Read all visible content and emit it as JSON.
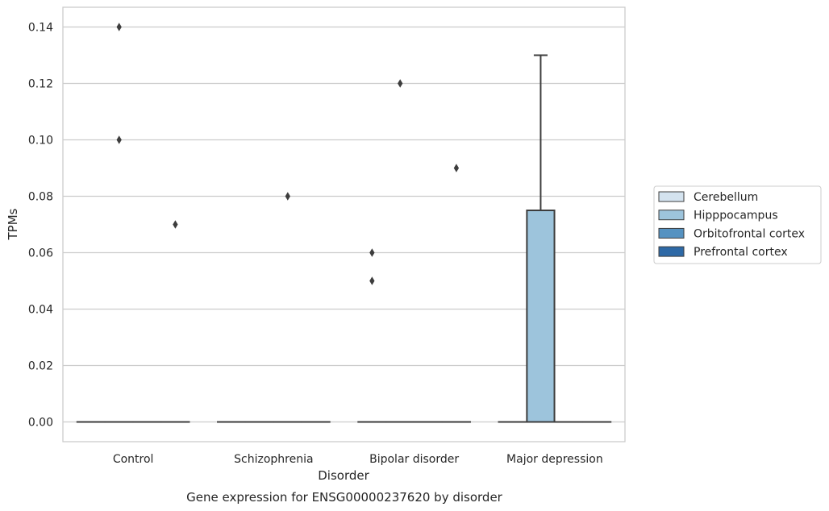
{
  "chart_data": {
    "type": "box",
    "xlabel": "Disorder",
    "ylabel": "TPMs",
    "caption": "Gene expression for ENSG00000237620 by disorder",
    "categories": [
      "Control",
      "Schizophrenia",
      "Bipolar disorder",
      "Major depression"
    ],
    "ylim": [
      -0.007,
      0.147
    ],
    "yticks": [
      "0.00",
      "0.02",
      "0.04",
      "0.06",
      "0.08",
      "0.10",
      "0.12",
      "0.14"
    ],
    "ytick_values": [
      0,
      0.02,
      0.04,
      0.06,
      0.08,
      0.1,
      0.12,
      0.14
    ],
    "grid": "horizontal",
    "legend_position": "outside-right",
    "series": [
      {
        "name": "Cerebellum",
        "color": "#d4e3ef"
      },
      {
        "name": "Hipppocampus",
        "color": "#9dc4dc"
      },
      {
        "name": "Orbitofrontal cortex",
        "color": "#5592c1"
      },
      {
        "name": "Prefrontal cortex",
        "color": "#2e69a6"
      }
    ],
    "boxes": [
      {
        "category": "Control",
        "series": "Cerebellum",
        "q1": 0,
        "median": 0,
        "q3": 0,
        "whisker_low": 0,
        "whisker_high": 0,
        "outliers": []
      },
      {
        "category": "Control",
        "series": "Hipppocampus",
        "q1": 0,
        "median": 0,
        "q3": 0,
        "whisker_low": 0,
        "whisker_high": 0,
        "outliers": [
          0.14,
          0.1
        ]
      },
      {
        "category": "Control",
        "series": "Orbitofrontal cortex",
        "q1": 0,
        "median": 0,
        "q3": 0,
        "whisker_low": 0,
        "whisker_high": 0,
        "outliers": []
      },
      {
        "category": "Control",
        "series": "Prefrontal cortex",
        "q1": 0,
        "median": 0,
        "q3": 0,
        "whisker_low": 0,
        "whisker_high": 0,
        "outliers": [
          0.07
        ]
      },
      {
        "category": "Schizophrenia",
        "series": "Cerebellum",
        "q1": 0,
        "median": 0,
        "q3": 0,
        "whisker_low": 0,
        "whisker_high": 0,
        "outliers": []
      },
      {
        "category": "Schizophrenia",
        "series": "Hipppocampus",
        "q1": 0,
        "median": 0,
        "q3": 0,
        "whisker_low": 0,
        "whisker_high": 0,
        "outliers": []
      },
      {
        "category": "Schizophrenia",
        "series": "Orbitofrontal cortex",
        "q1": 0,
        "median": 0,
        "q3": 0,
        "whisker_low": 0,
        "whisker_high": 0,
        "outliers": [
          0.08
        ]
      },
      {
        "category": "Schizophrenia",
        "series": "Prefrontal cortex",
        "q1": 0,
        "median": 0,
        "q3": 0,
        "whisker_low": 0,
        "whisker_high": 0,
        "outliers": []
      },
      {
        "category": "Bipolar disorder",
        "series": "Cerebellum",
        "q1": 0,
        "median": 0,
        "q3": 0,
        "whisker_low": 0,
        "whisker_high": 0,
        "outliers": [
          0.06,
          0.05
        ]
      },
      {
        "category": "Bipolar disorder",
        "series": "Hipppocampus",
        "q1": 0,
        "median": 0,
        "q3": 0,
        "whisker_low": 0,
        "whisker_high": 0,
        "outliers": [
          0.12
        ]
      },
      {
        "category": "Bipolar disorder",
        "series": "Orbitofrontal cortex",
        "q1": 0,
        "median": 0,
        "q3": 0,
        "whisker_low": 0,
        "whisker_high": 0,
        "outliers": []
      },
      {
        "category": "Bipolar disorder",
        "series": "Prefrontal cortex",
        "q1": 0,
        "median": 0,
        "q3": 0,
        "whisker_low": 0,
        "whisker_high": 0,
        "outliers": [
          0.09
        ]
      },
      {
        "category": "Major depression",
        "series": "Cerebellum",
        "q1": 0,
        "median": 0,
        "q3": 0,
        "whisker_low": 0,
        "whisker_high": 0,
        "outliers": []
      },
      {
        "category": "Major depression",
        "series": "Hipppocampus",
        "q1": 0,
        "median": 0,
        "q3": 0.075,
        "whisker_low": 0,
        "whisker_high": 0.13,
        "outliers": []
      },
      {
        "category": "Major depression",
        "series": "Orbitofrontal cortex",
        "q1": 0,
        "median": 0,
        "q3": 0,
        "whisker_low": 0,
        "whisker_high": 0,
        "outliers": []
      },
      {
        "category": "Major depression",
        "series": "Prefrontal cortex",
        "q1": 0,
        "median": 0,
        "q3": 0,
        "whisker_low": 0,
        "whisker_high": 0,
        "outliers": []
      }
    ]
  }
}
